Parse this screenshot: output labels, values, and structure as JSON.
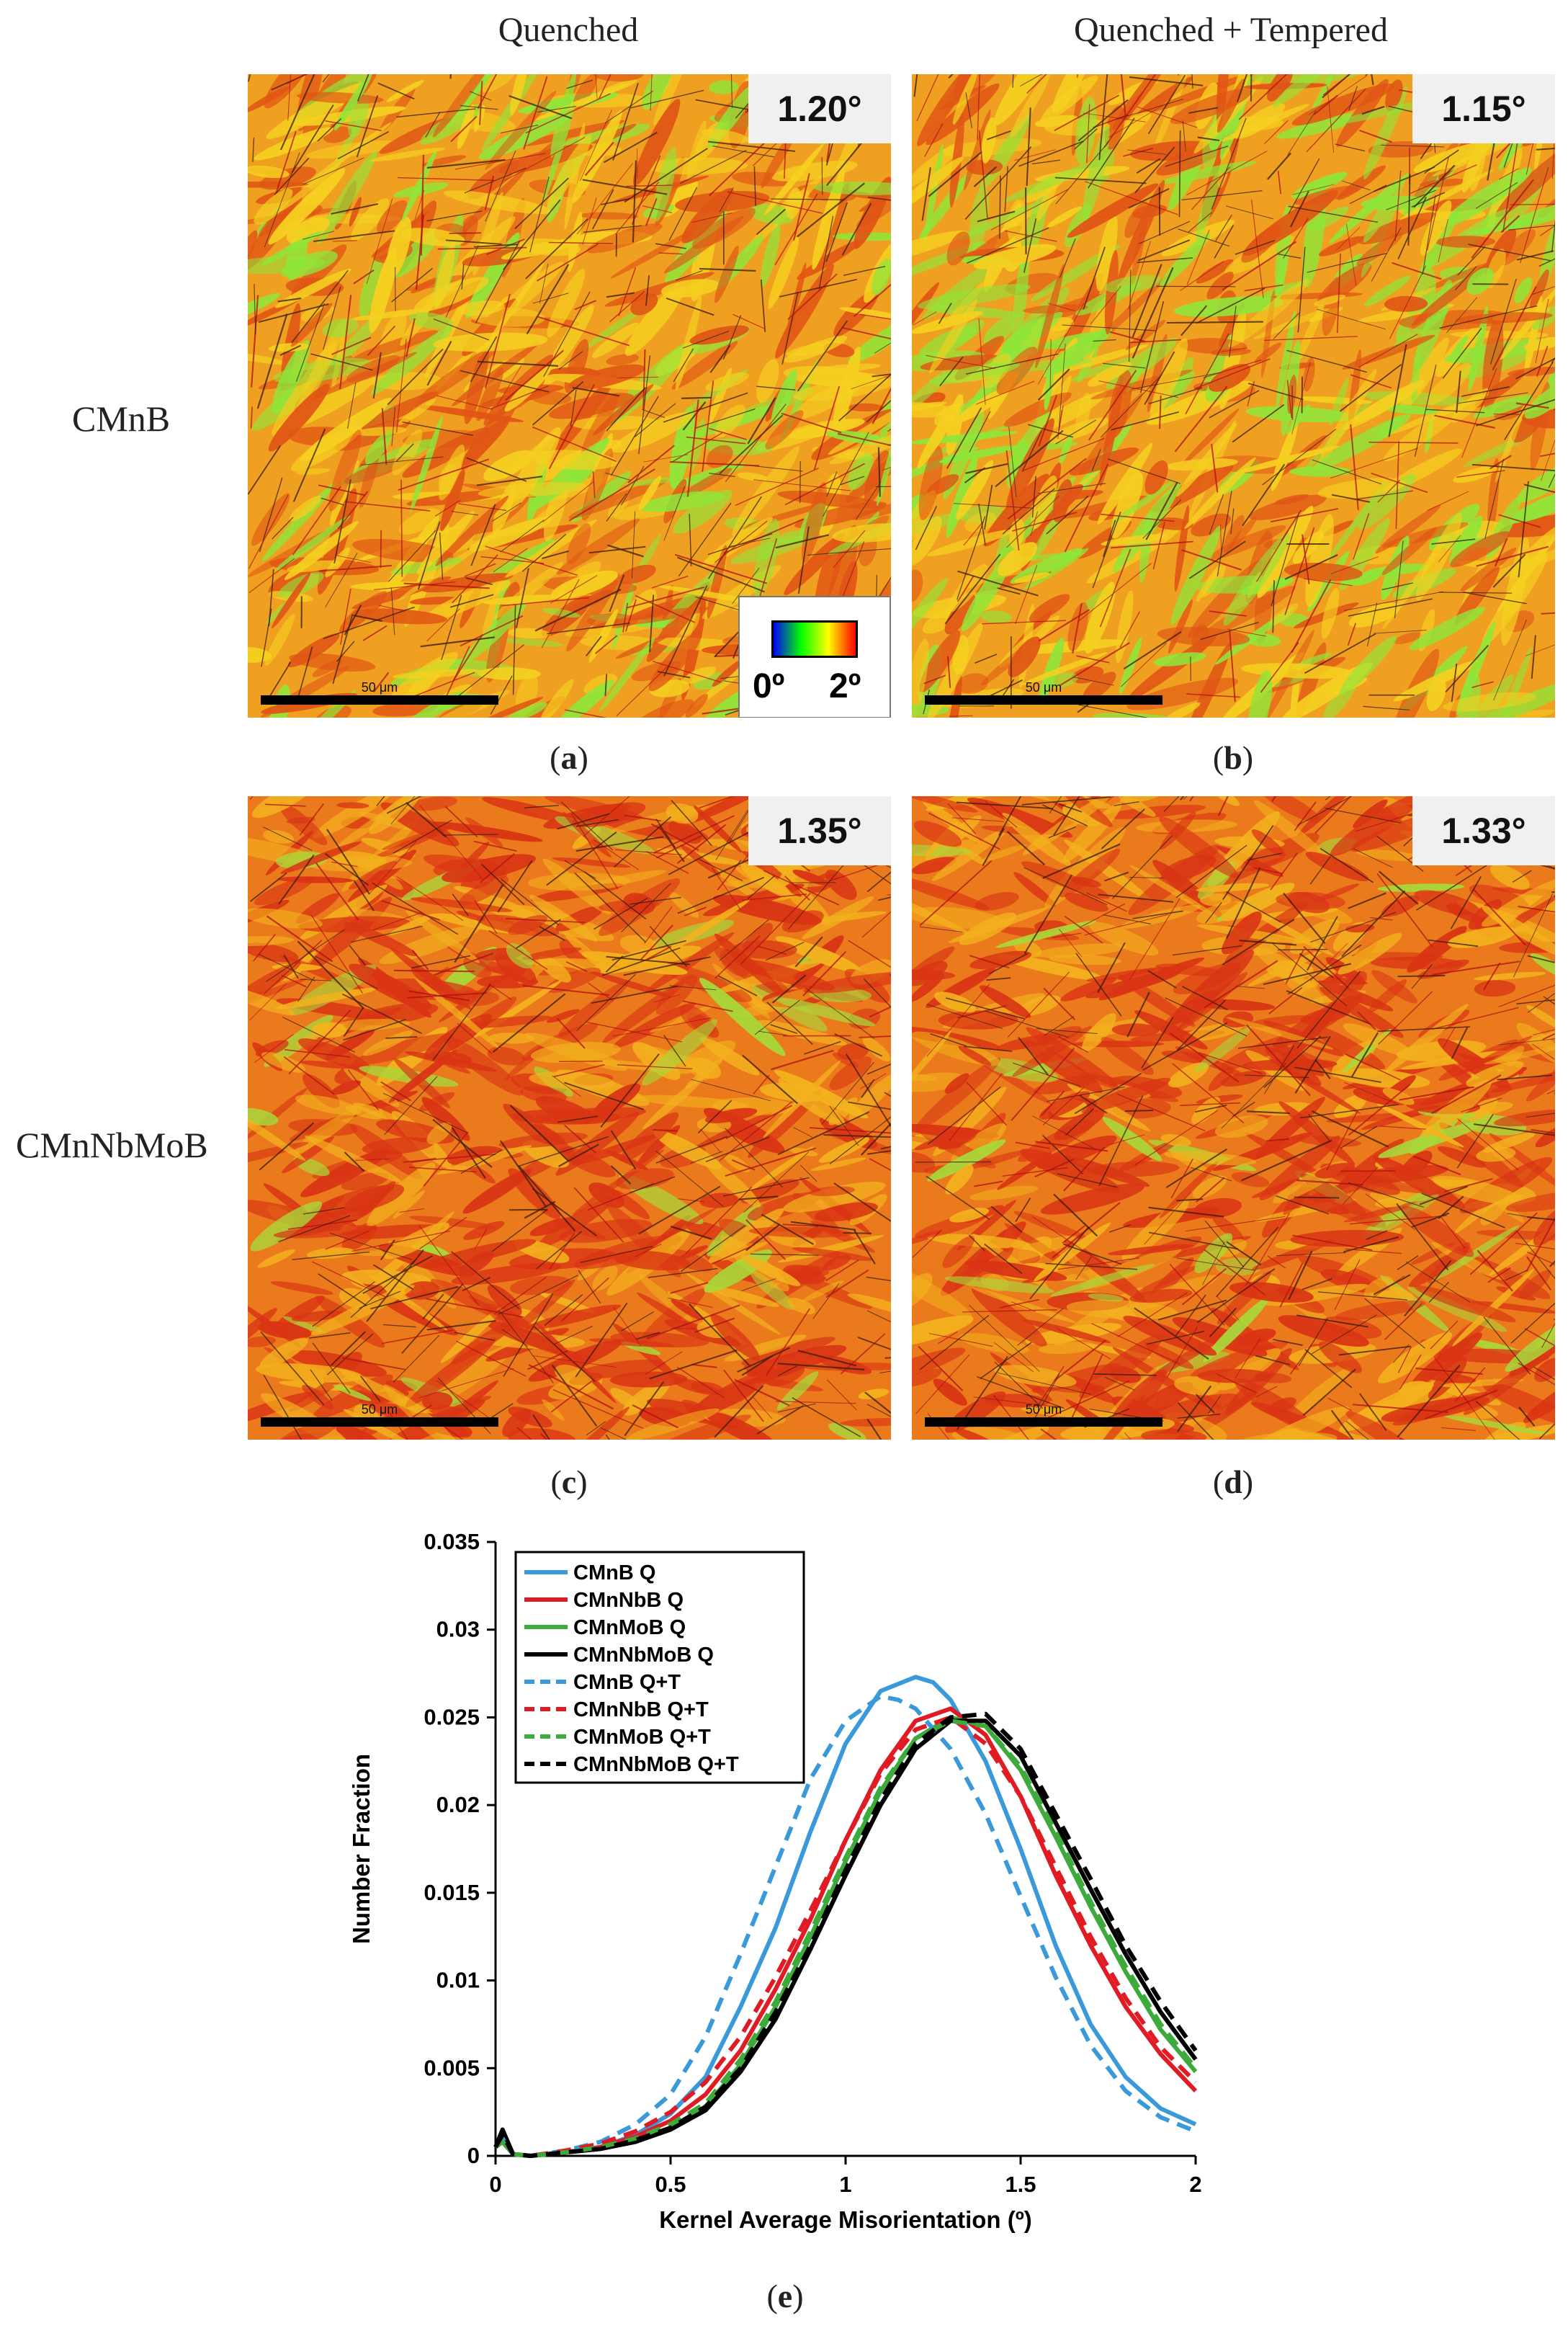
{
  "figure": {
    "columns": [
      "Quenched",
      "Quenched + Tempered"
    ],
    "rows": [
      "CMnB",
      "CMnNbMoB"
    ],
    "panels": [
      {
        "id": "a",
        "caption": "a",
        "kam_value": "1.20°",
        "scale_label": "50 μm"
      },
      {
        "id": "b",
        "caption": "b",
        "kam_value": "1.15°",
        "scale_label": "50 μm"
      },
      {
        "id": "c",
        "caption": "c",
        "kam_value": "1.35°",
        "scale_label": "50 μm"
      },
      {
        "id": "d",
        "caption": "d",
        "kam_value": "1.33°",
        "scale_label": "50 μm"
      }
    ],
    "colorbar": {
      "min_label": "0º",
      "max_label": "2º",
      "colors": [
        "#0000ff",
        "#00ff00",
        "#ffff00",
        "#ff0000"
      ]
    },
    "chart_caption": "e"
  },
  "chart_data": {
    "type": "line",
    "title": "",
    "xlabel": "Kernel Average Misorientation (º)",
    "ylabel": "Number Fraction",
    "xlim": [
      0,
      2
    ],
    "ylim": [
      0,
      0.035
    ],
    "xticks": [
      "0",
      "0.5",
      "1",
      "1.5",
      "2"
    ],
    "yticks": [
      "0",
      "0.005",
      "0.01",
      "0.015",
      "0.02",
      "0.025",
      "0.03",
      "0.035"
    ],
    "legend_position": "top-left",
    "series": [
      {
        "name": "CMnB Q",
        "color": "#3a9ad9",
        "dash": "solid",
        "x": [
          0,
          0.02,
          0.05,
          0.1,
          0.2,
          0.3,
          0.4,
          0.5,
          0.6,
          0.7,
          0.8,
          0.9,
          1.0,
          1.1,
          1.2,
          1.25,
          1.3,
          1.4,
          1.5,
          1.6,
          1.7,
          1.8,
          1.9,
          2.0
        ],
        "y": [
          0.0005,
          0.001,
          0.0001,
          0,
          0.0002,
          0.0005,
          0.0012,
          0.0024,
          0.0045,
          0.0085,
          0.013,
          0.0185,
          0.0235,
          0.0265,
          0.0273,
          0.027,
          0.026,
          0.0225,
          0.0175,
          0.012,
          0.0075,
          0.0045,
          0.0027,
          0.0018
        ]
      },
      {
        "name": "CMnNbB Q",
        "color": "#e01b24",
        "dash": "solid",
        "x": [
          0,
          0.02,
          0.05,
          0.1,
          0.2,
          0.3,
          0.4,
          0.5,
          0.6,
          0.7,
          0.8,
          0.9,
          1.0,
          1.1,
          1.2,
          1.3,
          1.4,
          1.5,
          1.6,
          1.7,
          1.8,
          1.9,
          2.0
        ],
        "y": [
          0.0005,
          0.0008,
          0.0001,
          0,
          0.0002,
          0.0005,
          0.0011,
          0.002,
          0.0035,
          0.006,
          0.0095,
          0.0135,
          0.018,
          0.022,
          0.0248,
          0.0255,
          0.024,
          0.0205,
          0.016,
          0.012,
          0.0085,
          0.0058,
          0.0037
        ]
      },
      {
        "name": "CMnMoB Q",
        "color": "#3cab3c",
        "dash": "solid",
        "x": [
          0,
          0.02,
          0.05,
          0.1,
          0.2,
          0.3,
          0.4,
          0.5,
          0.6,
          0.7,
          0.8,
          0.9,
          1.0,
          1.1,
          1.2,
          1.3,
          1.4,
          1.5,
          1.6,
          1.7,
          1.8,
          1.9,
          2.0
        ],
        "y": [
          0.0005,
          0.0008,
          0.0001,
          0,
          0.0002,
          0.0004,
          0.0009,
          0.0016,
          0.0028,
          0.0052,
          0.0085,
          0.0125,
          0.0168,
          0.0208,
          0.0238,
          0.025,
          0.0245,
          0.022,
          0.0182,
          0.0142,
          0.0105,
          0.0072,
          0.0048
        ]
      },
      {
        "name": "CMnNbMoB Q",
        "color": "#000000",
        "dash": "solid",
        "x": [
          0,
          0.02,
          0.05,
          0.1,
          0.2,
          0.3,
          0.4,
          0.5,
          0.6,
          0.7,
          0.8,
          0.9,
          1.0,
          1.1,
          1.2,
          1.3,
          1.4,
          1.5,
          1.6,
          1.7,
          1.8,
          1.9,
          2.0
        ],
        "y": [
          0.0005,
          0.0015,
          0.0001,
          0,
          0.0002,
          0.0004,
          0.0008,
          0.0015,
          0.0026,
          0.0048,
          0.0078,
          0.0118,
          0.016,
          0.02,
          0.0232,
          0.0248,
          0.0248,
          0.0228,
          0.019,
          0.0152,
          0.0115,
          0.0082,
          0.0055
        ]
      },
      {
        "name": "CMnB Q+T",
        "color": "#3a9ad9",
        "dash": "dashed",
        "x": [
          0,
          0.02,
          0.05,
          0.1,
          0.2,
          0.3,
          0.4,
          0.5,
          0.6,
          0.7,
          0.8,
          0.9,
          1.0,
          1.1,
          1.15,
          1.2,
          1.3,
          1.4,
          1.5,
          1.6,
          1.7,
          1.8,
          1.9,
          2.0
        ],
        "y": [
          0.0005,
          0.001,
          0.0001,
          0,
          0.0003,
          0.0008,
          0.0018,
          0.0035,
          0.0068,
          0.0115,
          0.0165,
          0.0215,
          0.0248,
          0.0262,
          0.026,
          0.0255,
          0.0232,
          0.0195,
          0.0148,
          0.0102,
          0.0063,
          0.0037,
          0.0022,
          0.0014
        ]
      },
      {
        "name": "CMnNbB Q+T",
        "color": "#e01b24",
        "dash": "dashed",
        "x": [
          0,
          0.02,
          0.05,
          0.1,
          0.2,
          0.3,
          0.4,
          0.5,
          0.6,
          0.7,
          0.8,
          0.9,
          1.0,
          1.1,
          1.2,
          1.3,
          1.4,
          1.5,
          1.6,
          1.7,
          1.8,
          1.9,
          2.0
        ],
        "y": [
          0.0005,
          0.0008,
          0.0001,
          0,
          0.0003,
          0.0007,
          0.0014,
          0.0025,
          0.0042,
          0.0068,
          0.0102,
          0.014,
          0.018,
          0.0218,
          0.0243,
          0.025,
          0.0235,
          0.0205,
          0.0165,
          0.0125,
          0.009,
          0.0062,
          0.0042
        ]
      },
      {
        "name": "CMnMoB Q+T",
        "color": "#3cab3c",
        "dash": "dashed",
        "x": [
          0,
          0.02,
          0.05,
          0.1,
          0.2,
          0.3,
          0.4,
          0.5,
          0.6,
          0.7,
          0.8,
          0.9,
          1.0,
          1.1,
          1.2,
          1.3,
          1.4,
          1.5,
          1.6,
          1.7,
          1.8,
          1.9,
          2.0
        ],
        "y": [
          0.0005,
          0.0008,
          0.0001,
          0,
          0.0002,
          0.0005,
          0.001,
          0.0018,
          0.003,
          0.0055,
          0.0088,
          0.0128,
          0.017,
          0.021,
          0.0238,
          0.0248,
          0.0245,
          0.0222,
          0.0185,
          0.0145,
          0.0108,
          0.0075,
          0.005
        ]
      },
      {
        "name": "CMnNbMoB Q+T",
        "color": "#000000",
        "dash": "dashed",
        "x": [
          0,
          0.02,
          0.05,
          0.1,
          0.2,
          0.3,
          0.4,
          0.5,
          0.6,
          0.7,
          0.8,
          0.9,
          1.0,
          1.1,
          1.2,
          1.3,
          1.4,
          1.5,
          1.6,
          1.7,
          1.8,
          1.9,
          2.0
        ],
        "y": [
          0.0005,
          0.0012,
          0.0001,
          0,
          0.0002,
          0.0004,
          0.0009,
          0.0016,
          0.0028,
          0.005,
          0.0082,
          0.012,
          0.0163,
          0.0203,
          0.0235,
          0.025,
          0.0252,
          0.0232,
          0.0195,
          0.0158,
          0.012,
          0.0088,
          0.006
        ]
      }
    ]
  }
}
